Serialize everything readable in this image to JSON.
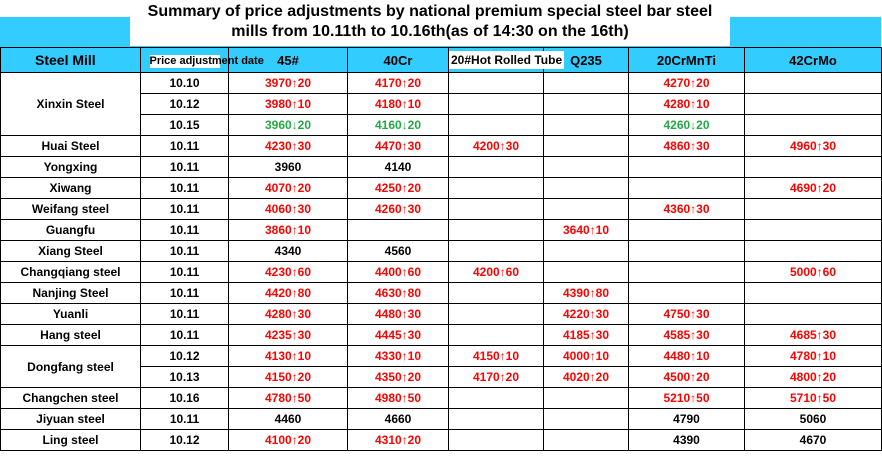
{
  "title": {
    "line1": "Summary of price adjustments by national premium special steel bar steel",
    "line2": "mills from 10.11th to 10.16th(as of 14:30 on the 16th)"
  },
  "columns": [
    "Steel Mill",
    "Price adjustment date",
    "45#",
    "40Cr",
    "20#Hot Rolled Tube",
    "Q235",
    "20CrMnTi",
    "42CrMo"
  ],
  "colors": {
    "header_bg": "#33ccff",
    "increase": "#ff0000",
    "decrease": "#22aa44",
    "unchanged": "#000000"
  },
  "groups": [
    {
      "mill": "Xinxin Steel",
      "rows": [
        {
          "date": "10.10",
          "cells": [
            {
              "t": "3970↑20",
              "c": "up"
            },
            {
              "t": "4170↑20",
              "c": "up"
            },
            null,
            null,
            {
              "t": "4270↑20",
              "c": "up"
            },
            null
          ]
        },
        {
          "date": "10.12",
          "cells": [
            {
              "t": "3980↑10",
              "c": "up"
            },
            {
              "t": "4180↑10",
              "c": "up"
            },
            null,
            null,
            {
              "t": "4280↑10",
              "c": "up"
            },
            null
          ]
        },
        {
          "date": "10.15",
          "cells": [
            {
              "t": "3960↓20",
              "c": "down"
            },
            {
              "t": "4160↓20",
              "c": "down"
            },
            null,
            null,
            {
              "t": "4260↓20",
              "c": "down"
            },
            null
          ]
        }
      ]
    },
    {
      "mill": "Huai Steel",
      "rows": [
        {
          "date": "10.11",
          "cells": [
            {
              "t": "4230↑30",
              "c": "up"
            },
            {
              "t": "4470↑30",
              "c": "up"
            },
            {
              "t": "4200↑30",
              "c": "up"
            },
            null,
            {
              "t": "4860↑30",
              "c": "up"
            },
            {
              "t": "4960↑30",
              "c": "up"
            }
          ]
        }
      ]
    },
    {
      "mill": "Yongxing",
      "rows": [
        {
          "date": "10.11",
          "cells": [
            {
              "t": "3960",
              "c": "plain"
            },
            {
              "t": "4140",
              "c": "plain"
            },
            null,
            null,
            null,
            null
          ]
        }
      ]
    },
    {
      "mill": "Xiwang",
      "rows": [
        {
          "date": "10.11",
          "cells": [
            {
              "t": "4070↑20",
              "c": "up"
            },
            {
              "t": "4250↑20",
              "c": "up"
            },
            null,
            null,
            null,
            {
              "t": "4690↑20",
              "c": "up"
            }
          ]
        }
      ]
    },
    {
      "mill": "Weifang steel",
      "rows": [
        {
          "date": "10.11",
          "cells": [
            {
              "t": "4060↑30",
              "c": "up"
            },
            {
              "t": "4260↑30",
              "c": "up"
            },
            null,
            null,
            {
              "t": "4360↑30",
              "c": "up"
            },
            null
          ]
        }
      ]
    },
    {
      "mill": "Guangfu",
      "rows": [
        {
          "date": "10.11",
          "cells": [
            {
              "t": "3860↑10",
              "c": "up"
            },
            null,
            null,
            {
              "t": "3640↑10",
              "c": "up"
            },
            null,
            null
          ]
        }
      ]
    },
    {
      "mill": "Xiang Steel",
      "rows": [
        {
          "date": "10.11",
          "cells": [
            {
              "t": "4340",
              "c": "plain"
            },
            {
              "t": "4560",
              "c": "plain"
            },
            null,
            null,
            null,
            null
          ]
        }
      ]
    },
    {
      "mill": "Changqiang steel",
      "rows": [
        {
          "date": "10.11",
          "cells": [
            {
              "t": "4230↑60",
              "c": "up"
            },
            {
              "t": "4400↑60",
              "c": "up"
            },
            {
              "t": "4200↑60",
              "c": "up"
            },
            null,
            null,
            {
              "t": "5000↑60",
              "c": "up"
            }
          ]
        }
      ]
    },
    {
      "mill": "Nanjing Steel",
      "rows": [
        {
          "date": "10.11",
          "cells": [
            {
              "t": "4420↑80",
              "c": "up"
            },
            {
              "t": "4630↑80",
              "c": "up"
            },
            null,
            {
              "t": "4390↑80",
              "c": "up"
            },
            null,
            null
          ]
        }
      ]
    },
    {
      "mill": "Yuanli",
      "rows": [
        {
          "date": "10.11",
          "cells": [
            {
              "t": "4280↑30",
              "c": "up"
            },
            {
              "t": "4480↑30",
              "c": "up"
            },
            null,
            {
              "t": "4220↑30",
              "c": "up"
            },
            {
              "t": "4750↑30",
              "c": "up"
            },
            null
          ]
        }
      ]
    },
    {
      "mill": "Hang steel",
      "rows": [
        {
          "date": "10.11",
          "cells": [
            {
              "t": "4235↑30",
              "c": "up"
            },
            {
              "t": "4445↑30",
              "c": "up"
            },
            null,
            {
              "t": "4185↑30",
              "c": "up"
            },
            {
              "t": "4585↑30",
              "c": "up"
            },
            {
              "t": "4685↑30",
              "c": "up"
            }
          ]
        }
      ]
    },
    {
      "mill": "Dongfang steel",
      "rows": [
        {
          "date": "10.12",
          "cells": [
            {
              "t": "4130↑10",
              "c": "up"
            },
            {
              "t": "4330↑10",
              "c": "up"
            },
            {
              "t": "4150↑10",
              "c": "up"
            },
            {
              "t": "4000↑10",
              "c": "up"
            },
            {
              "t": "4480↑10",
              "c": "up"
            },
            {
              "t": "4780↑10",
              "c": "up"
            }
          ]
        },
        {
          "date": "10.13",
          "cells": [
            {
              "t": "4150↑20",
              "c": "up"
            },
            {
              "t": "4350↑20",
              "c": "up"
            },
            {
              "t": "4170↑20",
              "c": "up"
            },
            {
              "t": "4020↑20",
              "c": "up"
            },
            {
              "t": "4500↑20",
              "c": "up"
            },
            {
              "t": "4800↑20",
              "c": "up"
            }
          ]
        }
      ]
    },
    {
      "mill": "Changchen steel",
      "rows": [
        {
          "date": "10.16",
          "cells": [
            {
              "t": "4780↑50",
              "c": "up"
            },
            {
              "t": "4980↑50",
              "c": "up"
            },
            null,
            null,
            {
              "t": "5210↑50",
              "c": "up"
            },
            {
              "t": "5710↑50",
              "c": "up"
            }
          ]
        }
      ]
    },
    {
      "mill": "Jiyuan steel",
      "rows": [
        {
          "date": "10.11",
          "cells": [
            {
              "t": "4460",
              "c": "plain"
            },
            {
              "t": "4660",
              "c": "plain"
            },
            null,
            null,
            {
              "t": "4790",
              "c": "plain"
            },
            {
              "t": "5060",
              "c": "plain"
            }
          ]
        }
      ]
    },
    {
      "mill": "Ling steel",
      "rows": [
        {
          "date": "10.12",
          "cells": [
            {
              "t": "4100↑20",
              "c": "up"
            },
            {
              "t": "4310↑20",
              "c": "up"
            },
            null,
            null,
            {
              "t": "4390",
              "c": "plain"
            },
            {
              "t": "4670",
              "c": "plain"
            }
          ]
        }
      ]
    }
  ]
}
